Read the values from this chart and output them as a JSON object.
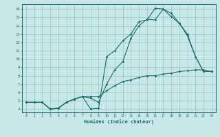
{
  "title": "",
  "xlabel": "Humidex (Indice chaleur)",
  "bg_color": "#c8e8e8",
  "grid_color": "#a0cccc",
  "line_color": "#1a6b6b",
  "x_ticks": [
    0,
    1,
    2,
    3,
    4,
    5,
    6,
    7,
    8,
    9,
    10,
    11,
    12,
    13,
    14,
    15,
    16,
    17,
    18,
    19,
    20,
    21,
    22,
    23
  ],
  "y_ticks": [
    4,
    5,
    6,
    7,
    8,
    9,
    10,
    11,
    12,
    13,
    14,
    15,
    16
  ],
  "xlim": [
    -0.5,
    23.5
  ],
  "ylim": [
    3.6,
    16.6
  ],
  "line1_x": [
    0,
    1,
    2,
    3,
    4,
    5,
    6,
    7,
    8,
    9,
    10,
    11,
    12,
    13,
    14,
    15,
    16,
    17,
    18,
    19,
    20,
    21,
    22,
    23
  ],
  "line1_y": [
    4.8,
    4.8,
    4.8,
    4.0,
    4.1,
    4.8,
    5.2,
    5.5,
    4.0,
    4.1,
    10.3,
    11.0,
    12.2,
    13.0,
    14.5,
    14.7,
    16.1,
    16.0,
    15.1,
    14.3,
    12.8,
    10.3,
    8.5,
    8.5
  ],
  "line2_x": [
    0,
    1,
    2,
    3,
    4,
    5,
    6,
    7,
    8,
    9,
    10,
    11,
    12,
    13,
    14,
    15,
    16,
    17,
    18,
    19,
    20,
    21,
    22,
    23
  ],
  "line2_y": [
    4.8,
    4.8,
    4.8,
    4.0,
    4.1,
    4.8,
    5.2,
    5.5,
    5.3,
    4.8,
    7.0,
    8.7,
    9.7,
    12.5,
    14.0,
    14.8,
    14.7,
    16.0,
    15.5,
    14.3,
    13.0,
    10.3,
    8.5,
    8.5
  ],
  "line3_x": [
    0,
    1,
    2,
    3,
    4,
    5,
    6,
    7,
    8,
    9,
    10,
    11,
    12,
    13,
    14,
    15,
    16,
    17,
    18,
    19,
    20,
    21,
    22,
    23
  ],
  "line3_y": [
    4.8,
    4.8,
    4.8,
    4.0,
    4.1,
    4.8,
    5.2,
    5.5,
    5.5,
    5.5,
    6.2,
    6.8,
    7.3,
    7.5,
    7.8,
    8.0,
    8.0,
    8.2,
    8.3,
    8.5,
    8.6,
    8.7,
    8.7,
    8.5
  ]
}
